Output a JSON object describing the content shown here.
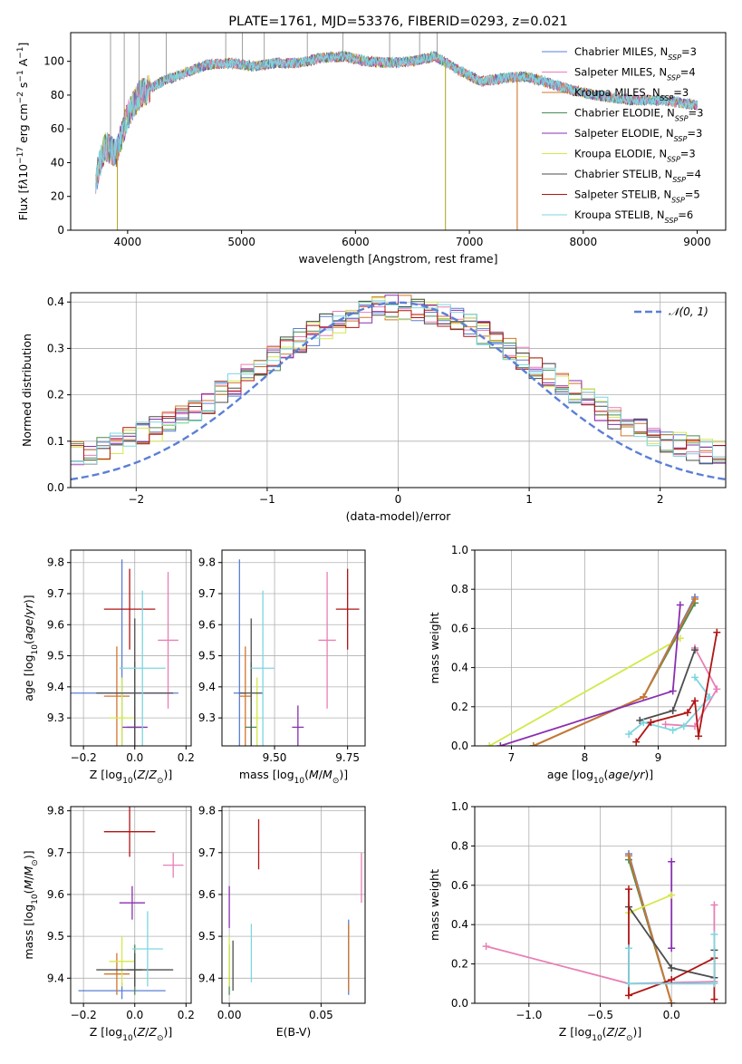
{
  "chart_data": [
    {
      "type": "line",
      "title": "PLATE=1761, MJD=53376, FIBERID=0293, z=0.021",
      "xlabel": "wavelength [Angstrom, rest frame]",
      "ylabel_html": "Flux [f<tspan font-style=\"italic\">λ</tspan>10<tspan baseline-shift=\"super\" font-size=\"9\">−17</tspan> erg cm<tspan baseline-shift=\"super\" font-size=\"9\">−2</tspan> s<tspan baseline-shift=\"super\" font-size=\"9\">−1</tspan> A<tspan baseline-shift=\"super\" font-size=\"9\">−1</tspan>]",
      "xlim": [
        3500,
        9250
      ],
      "ylim": [
        0,
        117
      ],
      "xticks": [
        4000,
        5000,
        6000,
        7000,
        8000,
        9000
      ],
      "yticks": [
        0,
        20,
        40,
        60,
        80,
        100
      ],
      "legend": "upper right",
      "legend_entries": [
        {
          "name": "Chabrier MILES, N",
          "sub": "SSP",
          "tail": "=3",
          "color": "#5b7fd6"
        },
        {
          "name": "Salpeter MILES, N",
          "sub": "SSP",
          "tail": "=4",
          "color": "#e87fb5"
        },
        {
          "name": "Kroupa MILES, N",
          "sub": "SSP",
          "tail": "=3",
          "color": "#d2752b"
        },
        {
          "name": "Chabrier ELODIE, N",
          "sub": "SSP",
          "tail": "=3",
          "color": "#4c8a52"
        },
        {
          "name": "Salpeter ELODIE, N",
          "sub": "SSP",
          "tail": "=3",
          "color": "#8a2fb0"
        },
        {
          "name": "Kroupa ELODIE, N",
          "sub": "SSP",
          "tail": "=3",
          "color": "#d4e84a"
        },
        {
          "name": "Chabrier STELIB, N",
          "sub": "SSP",
          "tail": "=4",
          "color": "#4d4d4d"
        },
        {
          "name": "Salpeter STELIB, N",
          "sub": "SSP",
          "tail": "=5",
          "color": "#b01515"
        },
        {
          "name": "Kroupa STELIB, N",
          "sub": "SSP",
          "tail": "=6",
          "color": "#7dd6df"
        }
      ],
      "spectrum_knots": [
        [
          3720,
          30
        ],
        [
          3800,
          50
        ],
        [
          3900,
          45
        ],
        [
          4000,
          68
        ],
        [
          4100,
          80
        ],
        [
          4300,
          88
        ],
        [
          4500,
          93
        ],
        [
          4700,
          98
        ],
        [
          4900,
          99
        ],
        [
          5100,
          97
        ],
        [
          5300,
          99
        ],
        [
          5500,
          99
        ],
        [
          5700,
          102
        ],
        [
          5900,
          103
        ],
        [
          6100,
          100
        ],
        [
          6300,
          99
        ],
        [
          6500,
          100
        ],
        [
          6700,
          103
        ],
        [
          6900,
          95
        ],
        [
          7100,
          88
        ],
        [
          7300,
          90
        ],
        [
          7500,
          91
        ],
        [
          7700,
          87
        ],
        [
          7900,
          83
        ],
        [
          8100,
          80
        ],
        [
          8300,
          78
        ],
        [
          8500,
          77
        ],
        [
          8700,
          77
        ],
        [
          8900,
          75
        ],
        [
          9000,
          74
        ]
      ],
      "spikes_up": [
        3850,
        3970,
        4102,
        4340,
        4861,
        5007,
        5200,
        5577,
        5890,
        6300,
        6563,
        6716
      ],
      "spikes_down": [
        {
          "x": 3910,
          "color": "#b5a82b"
        },
        {
          "x": 6790,
          "color": "#b5a82b"
        },
        {
          "x": 7420,
          "color": "#d2752b"
        }
      ]
    },
    {
      "type": "step",
      "xlabel": "(data-model)/error",
      "ylabel": "Normed distribution",
      "xlim": [
        -2.5,
        2.5
      ],
      "ylim": [
        0,
        0.42
      ],
      "xticks": [
        -2,
        -1,
        0,
        1,
        2
      ],
      "yticks": [
        0.0,
        0.1,
        0.2,
        0.3,
        0.4
      ],
      "legend": "upper right",
      "legend_label": "𝒩(0, 1)",
      "normal_color": "#5b7fd6",
      "bin_width": 0.1
    },
    {
      "type": "errorbar",
      "xlabel": "Z [log10(Z/Z⊙)]",
      "xlabel_html": "Z [log<tspan baseline-shift=\"sub\" font-size=\"9\">10</tspan>(<tspan font-style=\"italic\">Z</tspan>/<tspan font-style=\"italic\">Z</tspan><tspan baseline-shift=\"sub\" font-size=\"9\">⊙</tspan>)]",
      "ylabel_html": "age  [log<tspan baseline-shift=\"sub\" font-size=\"9\">10</tspan>(<tspan font-style=\"italic\">age</tspan>/<tspan font-style=\"italic\">yr</tspan>)]",
      "xlim": [
        -0.25,
        0.22
      ],
      "ylim": [
        9.21,
        9.84
      ],
      "xticks": [
        -0.2,
        0.0,
        0.2
      ],
      "yticks": [
        9.3,
        9.4,
        9.5,
        9.6,
        9.7,
        9.8
      ],
      "points": [
        {
          "x": -0.05,
          "xerr": 0.22,
          "y": 9.38,
          "yerr": 0.43,
          "color": "#5b7fd6"
        },
        {
          "x": 0.13,
          "xerr": 0.04,
          "y": 9.55,
          "yerr": 0.22,
          "color": "#e87fb5"
        },
        {
          "x": -0.07,
          "xerr": 0.05,
          "y": 9.37,
          "yerr": 0.16,
          "color": "#d2752b"
        },
        {
          "x": 0.0,
          "xerr": 0.03,
          "y": 9.27,
          "yerr": 0.21,
          "color": "#4c8a52"
        },
        {
          "x": 0.0,
          "xerr": 0.05,
          "y": 9.27,
          "yerr": 0.07,
          "color": "#8a2fb0"
        },
        {
          "x": -0.05,
          "xerr": 0.05,
          "y": 9.3,
          "yerr": 0.13,
          "color": "#d4e84a"
        },
        {
          "x": 0.0,
          "xerr": 0.15,
          "y": 9.38,
          "yerr": 0.24,
          "color": "#4d4d4d"
        },
        {
          "x": -0.02,
          "xerr": 0.1,
          "y": 9.65,
          "yerr": 0.13,
          "color": "#b01515"
        },
        {
          "x": 0.03,
          "xerr": 0.09,
          "y": 9.46,
          "yerr": 0.25,
          "color": "#7dd6df"
        }
      ]
    },
    {
      "type": "errorbar",
      "xlabel_html": "mass [log<tspan baseline-shift=\"sub\" font-size=\"9\">10</tspan>(<tspan font-style=\"italic\">M</tspan>/<tspan font-style=\"italic\">M</tspan><tspan baseline-shift=\"sub\" font-size=\"9\">⊙</tspan>)]",
      "xlim": [
        9.32,
        9.81
      ],
      "ylim": [
        9.21,
        9.84
      ],
      "xticks": [
        9.5,
        9.75
      ],
      "yticks": [
        9.3,
        9.4,
        9.5,
        9.6,
        9.7,
        9.8
      ],
      "points": [
        {
          "x": 9.38,
          "xerr": 0.02,
          "y": 9.38,
          "yerr": 0.43,
          "color": "#5b7fd6"
        },
        {
          "x": 9.68,
          "xerr": 0.03,
          "y": 9.55,
          "yerr": 0.22,
          "color": "#e87fb5"
        },
        {
          "x": 9.4,
          "xerr": 0.02,
          "y": 9.37,
          "yerr": 0.16,
          "color": "#d2752b"
        },
        {
          "x": 9.42,
          "xerr": 0.02,
          "y": 9.27,
          "yerr": 0.21,
          "color": "#4c8a52"
        },
        {
          "x": 9.58,
          "xerr": 0.02,
          "y": 9.27,
          "yerr": 0.07,
          "color": "#8a2fb0"
        },
        {
          "x": 9.44,
          "xerr": 0.01,
          "y": 9.3,
          "yerr": 0.13,
          "color": "#d4e84a"
        },
        {
          "x": 9.42,
          "xerr": 0.04,
          "y": 9.38,
          "yerr": 0.24,
          "color": "#4d4d4d"
        },
        {
          "x": 9.75,
          "xerr": 0.04,
          "y": 9.65,
          "yerr": 0.13,
          "color": "#b01515"
        },
        {
          "x": 9.46,
          "xerr": 0.04,
          "y": 9.46,
          "yerr": 0.25,
          "color": "#7dd6df"
        }
      ]
    },
    {
      "type": "line",
      "xlabel_html": "age  [log<tspan baseline-shift=\"sub\" font-size=\"9\">10</tspan>(<tspan font-style=\"italic\">age</tspan>/<tspan font-style=\"italic\">yr</tspan>)]",
      "ylabel": "mass weight",
      "xlim": [
        6.5,
        9.92
      ],
      "ylim": [
        0,
        1
      ],
      "xticks": [
        7,
        8,
        9
      ],
      "yticks": [
        0.0,
        0.2,
        0.4,
        0.6,
        0.8,
        1.0
      ],
      "series": [
        {
          "color": "#5b7fd6",
          "points": [
            [
              9.5,
              0.76
            ],
            [
              8.8,
              0.25
            ],
            [
              7.3,
              0.0
            ]
          ]
        },
        {
          "color": "#e87fb5",
          "points": [
            [
              9.5,
              0.5
            ],
            [
              9.8,
              0.29
            ],
            [
              9.5,
              0.1
            ],
            [
              9.1,
              0.11
            ]
          ]
        },
        {
          "color": "#d4e84a",
          "points": [
            [
              9.3,
              0.55
            ],
            [
              6.7,
              0.0
            ]
          ]
        },
        {
          "color": "#4c8a52",
          "points": [
            [
              9.5,
              0.73
            ],
            [
              8.8,
              0.25
            ],
            [
              7.3,
              0.0
            ]
          ]
        },
        {
          "color": "#d2752b",
          "points": [
            [
              9.5,
              0.75
            ],
            [
              8.8,
              0.25
            ],
            [
              7.3,
              0.0
            ]
          ]
        },
        {
          "color": "#8a2fb0",
          "points": [
            [
              9.3,
              0.72
            ],
            [
              9.2,
              0.28
            ],
            [
              6.85,
              0.0
            ]
          ]
        },
        {
          "color": "#4d4d4d",
          "points": [
            [
              9.5,
              0.49
            ],
            [
              9.2,
              0.18
            ],
            [
              8.75,
              0.13
            ]
          ]
        },
        {
          "color": "#7dd6df",
          "points": [
            [
              9.5,
              0.35
            ],
            [
              9.7,
              0.25
            ],
            [
              9.35,
              0.1
            ],
            [
              9.2,
              0.08
            ],
            [
              8.8,
              0.12
            ],
            [
              8.6,
              0.06
            ]
          ]
        },
        {
          "color": "#b01515",
          "points": [
            [
              9.8,
              0.58
            ],
            [
              9.55,
              0.05
            ],
            [
              9.5,
              0.23
            ],
            [
              9.4,
              0.17
            ],
            [
              8.9,
              0.12
            ],
            [
              8.7,
              0.02
            ]
          ]
        }
      ]
    },
    {
      "type": "errorbar",
      "xlabel_html": "Z [log<tspan baseline-shift=\"sub\" font-size=\"9\">10</tspan>(<tspan font-style=\"italic\">Z</tspan>/<tspan font-style=\"italic\">Z</tspan><tspan baseline-shift=\"sub\" font-size=\"9\">⊙</tspan>)]",
      "ylabel_html": "mass [log<tspan baseline-shift=\"sub\" font-size=\"9\">10</tspan>(<tspan font-style=\"italic\">M</tspan>/<tspan font-style=\"italic\">M</tspan><tspan baseline-shift=\"sub\" font-size=\"9\">⊙</tspan>)]",
      "xlim": [
        -0.25,
        0.22
      ],
      "ylim": [
        9.34,
        9.81
      ],
      "xticks": [
        -0.2,
        0.0,
        0.2
      ],
      "yticks": [
        9.4,
        9.5,
        9.6,
        9.7,
        9.8
      ],
      "points": [
        {
          "x": -0.05,
          "xerr": 0.17,
          "y": 9.37,
          "yerr": 0.02,
          "color": "#5b7fd6"
        },
        {
          "x": 0.15,
          "xerr": 0.04,
          "y": 9.67,
          "yerr": 0.03,
          "color": "#e87fb5"
        },
        {
          "x": -0.07,
          "xerr": 0.05,
          "y": 9.41,
          "yerr": 0.05,
          "color": "#d2752b"
        },
        {
          "x": 0.0,
          "xerr": 0.03,
          "y": 9.42,
          "yerr": 0.06,
          "color": "#4c8a52"
        },
        {
          "x": -0.01,
          "xerr": 0.05,
          "y": 9.58,
          "yerr": 0.04,
          "color": "#8a2fb0"
        },
        {
          "x": -0.05,
          "xerr": 0.05,
          "y": 9.44,
          "yerr": 0.06,
          "color": "#d4e84a"
        },
        {
          "x": 0.0,
          "xerr": 0.15,
          "y": 9.42,
          "yerr": 0.04,
          "color": "#4d4d4d"
        },
        {
          "x": -0.02,
          "xerr": 0.1,
          "y": 9.75,
          "yerr": 0.06,
          "color": "#b01515"
        },
        {
          "x": 0.05,
          "xerr": 0.06,
          "y": 9.47,
          "yerr": 0.09,
          "color": "#7dd6df"
        }
      ]
    },
    {
      "type": "errorbar",
      "xlabel": "E(B-V)",
      "xlim": [
        -0.004,
        0.074
      ],
      "ylim": [
        9.34,
        9.81
      ],
      "xticks": [
        0.0,
        0.05
      ],
      "yticks": [
        9.4,
        9.5,
        9.6,
        9.7,
        9.8
      ],
      "points": [
        {
          "x": 0.065,
          "xerr": 0,
          "y": 9.45,
          "yerr": 0.09,
          "color": "#5b7fd6"
        },
        {
          "x": 0.072,
          "xerr": 0,
          "y": 9.64,
          "yerr": 0.06,
          "color": "#e87fb5"
        },
        {
          "x": 0.065,
          "xerr": 0,
          "y": 9.45,
          "yerr": 0.08,
          "color": "#d2752b"
        },
        {
          "x": 0.0,
          "xerr": 0,
          "y": 9.42,
          "yerr": 0.06,
          "color": "#4c8a52"
        },
        {
          "x": 0.0,
          "xerr": 0,
          "y": 9.57,
          "yerr": 0.05,
          "color": "#8a2fb0"
        },
        {
          "x": 0.0,
          "xerr": 0,
          "y": 9.44,
          "yerr": 0.06,
          "color": "#d4e84a"
        },
        {
          "x": 0.002,
          "xerr": 0,
          "y": 9.43,
          "yerr": 0.06,
          "color": "#4d4d4d"
        },
        {
          "x": 0.016,
          "xerr": 0,
          "y": 9.72,
          "yerr": 0.06,
          "color": "#b01515"
        },
        {
          "x": 0.012,
          "xerr": 0,
          "y": 9.46,
          "yerr": 0.07,
          "color": "#7dd6df"
        }
      ]
    },
    {
      "type": "line",
      "xlabel_html": "Z [log<tspan baseline-shift=\"sub\" font-size=\"9\">10</tspan>(<tspan font-style=\"italic\">Z</tspan>/<tspan font-style=\"italic\">Z</tspan><tspan baseline-shift=\"sub\" font-size=\"9\">⊙</tspan>)]",
      "ylabel": "mass weight",
      "xlim": [
        -1.38,
        0.38
      ],
      "ylim": [
        0,
        1
      ],
      "xticks": [
        -1.0,
        -0.5,
        0.0
      ],
      "xticklabels": [
        "−1.0",
        "−0.5",
        "0.0"
      ],
      "yticks": [
        0.0,
        0.2,
        0.4,
        0.6,
        0.8,
        1.0
      ],
      "series": [
        {
          "color": "#e87fb5",
          "points": [
            [
              -1.3,
              0.29
            ],
            [
              -0.3,
              0.1
            ],
            [
              0.3,
              0.11
            ],
            [
              0.3,
              0.5
            ]
          ]
        },
        {
          "color": "#5b7fd6",
          "points": [
            [
              -0.3,
              0.76
            ],
            [
              0.0,
              0.0
            ]
          ]
        },
        {
          "color": "#4c8a52",
          "points": [
            [
              -0.3,
              0.73
            ],
            [
              0.0,
              0.0
            ]
          ]
        },
        {
          "color": "#d2752b",
          "points": [
            [
              -0.3,
              0.75
            ],
            [
              0.0,
              0.0
            ]
          ]
        },
        {
          "color": "#8a2fb0",
          "points": [
            [
              0.0,
              0.72
            ],
            [
              0.0,
              0.28
            ]
          ]
        },
        {
          "color": "#d4e84a",
          "points": [
            [
              0.0,
              0.55
            ],
            [
              -0.3,
              0.46
            ]
          ]
        },
        {
          "color": "#4d4d4d",
          "points": [
            [
              -0.3,
              0.49
            ],
            [
              0.0,
              0.18
            ],
            [
              0.3,
              0.13
            ],
            [
              0.3,
              0.27
            ]
          ]
        },
        {
          "color": "#b01515",
          "points": [
            [
              -0.3,
              0.58
            ],
            [
              -0.3,
              0.04
            ],
            [
              0.0,
              0.12
            ],
            [
              0.3,
              0.23
            ],
            [
              0.3,
              0.02
            ]
          ]
        },
        {
          "color": "#7dd6df",
          "points": [
            [
              -0.3,
              0.28
            ],
            [
              -0.3,
              0.1
            ],
            [
              0.3,
              0.1
            ],
            [
              0.3,
              0.35
            ]
          ]
        }
      ]
    }
  ]
}
